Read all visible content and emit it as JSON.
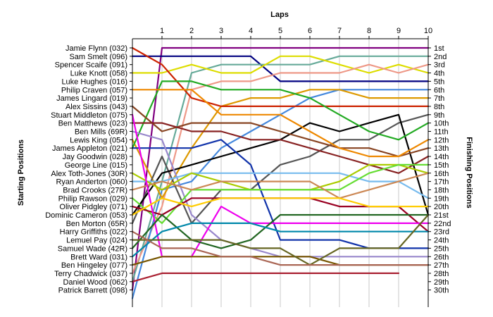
{
  "chart_data": {
    "type": "line",
    "title": "",
    "xlabel": "Laps",
    "ylabel_left": "Starting Positions",
    "ylabel_right": "Finishing Positions",
    "x": [
      0,
      1,
      2,
      3,
      4,
      5,
      6,
      7,
      8,
      9,
      10
    ],
    "xlim": [
      0,
      10
    ],
    "x_tick_labels": [
      "1",
      "2",
      "3",
      "4",
      "5",
      "6",
      "7",
      "8",
      "9",
      "10"
    ],
    "ylim": [
      1,
      31
    ],
    "y_inverted": true,
    "grid": "vertical",
    "left_labels": [
      "Jamie Flynn (032)",
      "Sam Smelt (096)",
      "Spencer Scaife (091)",
      "Luke Knott (058)",
      "Luke Hughes (016)",
      "Philip Craven (057)",
      "James Lingard (019)",
      "Alex Sissins (043)",
      "Stuart Middleton (075)",
      "Ben Matthews (023)",
      "Ben Mills (69R)",
      "Lewis King (054)",
      "James Appleton (021)",
      "Jay Goodwin (028)",
      "George Line (015)",
      "Alex Toth-Jones (30R)",
      "Ryan Anderton (060)",
      "Brad Crooks (27R)",
      "Philip Rawson (029)",
      "Oliver Pidgley (071)",
      "Dominic Cameron (053)",
      "Ben Morton (65R)",
      "Harry Griffiths (022)",
      "Lemuel Pay (024)",
      "Samuel Wade (42R)",
      "Brett Ward (031)",
      "Ben Hingeley (077)",
      "Terry Chadwick (037)",
      "Daniel Wood (062)",
      "Patrick Barrett (098)"
    ],
    "right_labels": [
      "1st",
      "2nd",
      "3rd",
      "4th",
      "5th",
      "6th",
      "7th",
      "8th",
      "9th",
      "10th",
      "11th",
      "12th",
      "13th",
      "14th",
      "15th",
      "16th",
      "17th",
      "18th",
      "19th",
      "20th",
      "21st",
      "22nd",
      "23rd",
      "24th",
      "25th",
      "26th",
      "27th",
      "28th",
      "29th",
      "30th"
    ],
    "series": [
      {
        "color": "#800080",
        "values": [
          30,
          1,
          1,
          1,
          1,
          1,
          1,
          1,
          1,
          1,
          1
        ]
      },
      {
        "color": "#000080",
        "values": [
          2,
          2,
          2,
          2,
          2,
          5,
          5,
          5,
          5,
          5,
          5
        ]
      },
      {
        "color": "#66aa99",
        "values": [
          29,
          17,
          4,
          3,
          3,
          3,
          3,
          2,
          2,
          2,
          2
        ]
      },
      {
        "color": "#dddd00",
        "values": [
          4,
          4,
          3,
          4,
          4,
          2,
          2,
          3,
          4,
          3,
          4
        ]
      },
      {
        "color": "#ee9988",
        "values": [
          28,
          20,
          6,
          5,
          5,
          4,
          4,
          4,
          3,
          4,
          3
        ]
      },
      {
        "color": "#4488dd",
        "values": [
          31,
          18,
          17,
          13,
          11,
          9,
          7,
          6,
          6,
          6,
          6
        ]
      },
      {
        "color": "#dd9900",
        "values": [
          12,
          19,
          13,
          8,
          7,
          7,
          6,
          6,
          7,
          7,
          7
        ]
      },
      {
        "color": "#cc2200",
        "values": [
          1,
          3,
          7,
          8,
          8,
          8,
          8,
          8,
          8,
          8,
          8
        ]
      },
      {
        "color": "#555555",
        "values": [
          22,
          14,
          22,
          18,
          18,
          15,
          14,
          12,
          12,
          10,
          9
        ]
      },
      {
        "color": "#000000",
        "values": [
          21,
          16,
          15,
          14,
          13,
          12,
          10,
          11,
          10,
          9,
          21
        ]
      },
      {
        "color": "#22aa22",
        "values": [
          13,
          5,
          5,
          6,
          6,
          6,
          7,
          9,
          11,
          12,
          10
        ]
      },
      {
        "color": "#884422",
        "values": [
          8,
          11,
          10,
          10,
          10,
          11,
          12,
          13,
          13,
          14,
          13
        ]
      },
      {
        "color": "#ee8800",
        "values": [
          6,
          6,
          6,
          9,
          9,
          9,
          11,
          13,
          14,
          14,
          12
        ]
      },
      {
        "color": "#882222",
        "values": [
          10,
          10,
          11,
          11,
          12,
          12,
          13,
          14,
          15,
          16,
          14
        ]
      },
      {
        "color": "#1133aa",
        "values": [
          13,
          13,
          13,
          12,
          15,
          24,
          24,
          24,
          25,
          25,
          25
        ]
      },
      {
        "color": "#9988cc",
        "values": [
          11,
          12,
          21,
          24,
          25,
          26,
          26,
          26,
          26,
          26,
          26
        ]
      },
      {
        "color": "#77bbee",
        "values": [
          17,
          17,
          16,
          16,
          16,
          16,
          16,
          16,
          17,
          17,
          19
        ]
      },
      {
        "color": "#aacc00",
        "values": [
          16,
          18,
          16,
          17,
          18,
          18,
          18,
          17,
          15,
          15,
          16
        ]
      },
      {
        "color": "#66dd33",
        "values": [
          19,
          22,
          18,
          18,
          18,
          18,
          18,
          18,
          16,
          15,
          15
        ]
      },
      {
        "color": "#cc8855",
        "values": [
          18,
          17,
          18,
          17,
          17,
          17,
          17,
          19,
          18,
          17,
          16
        ]
      },
      {
        "color": "#990022",
        "values": [
          20,
          21,
          19,
          19,
          19,
          19,
          19,
          20,
          20,
          20,
          23
        ]
      },
      {
        "color": "#ee00ee",
        "values": [
          9,
          26,
          26,
          20,
          22,
          22,
          22,
          22,
          22,
          22,
          22
        ]
      },
      {
        "color": "#226622",
        "values": [
          25,
          21,
          24,
          25,
          24,
          21,
          21,
          21,
          21,
          21,
          21
        ]
      },
      {
        "color": "#ffcc00",
        "values": [
          21,
          19,
          20,
          19,
          19,
          19,
          19,
          19,
          20,
          20,
          20
        ]
      },
      {
        "color": "#0088aa",
        "values": [
          26,
          23,
          22,
          22,
          22,
          23,
          23,
          23,
          23,
          23,
          23
        ]
      },
      {
        "color": "#775500",
        "values": [
          27,
          26,
          26,
          26,
          26,
          26,
          26,
          27,
          27,
          27,
          27
        ]
      },
      {
        "color": "#666622",
        "values": [
          24,
          24,
          24,
          24,
          25,
          25,
          27,
          25,
          25,
          25,
          21
        ]
      },
      {
        "color": "#aa6655",
        "values": [
          23,
          25,
          25,
          26,
          26,
          27,
          27,
          27,
          27,
          27,
          27
        ]
      },
      {
        "color": "#aa2233",
        "values": [
          29,
          28,
          28,
          28,
          28,
          28,
          28,
          28,
          28,
          28,
          null
        ]
      }
    ]
  }
}
